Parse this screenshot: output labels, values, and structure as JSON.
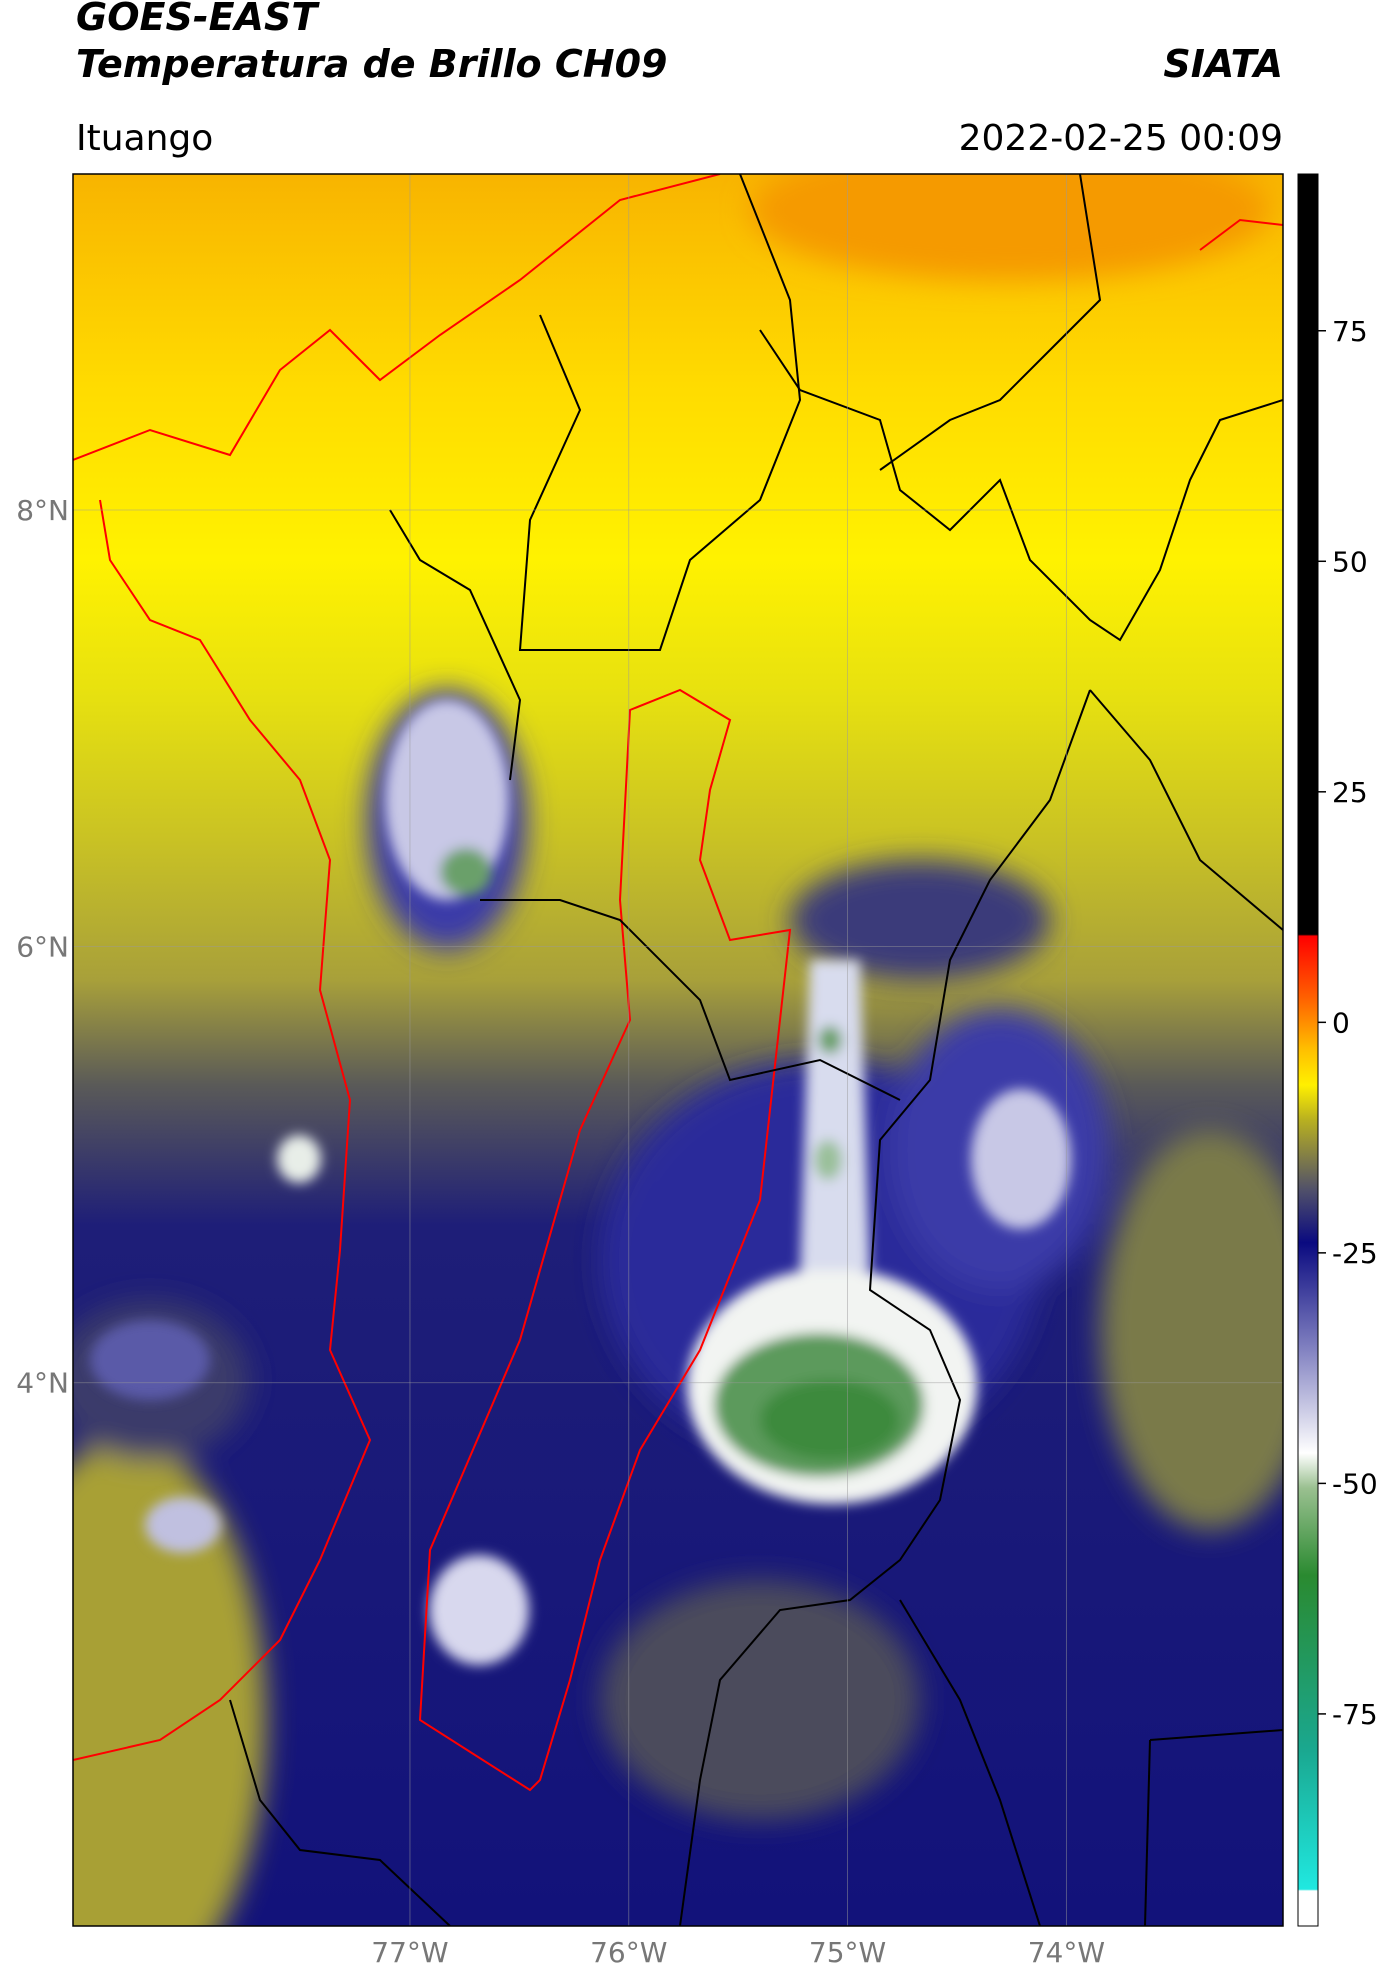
{
  "header": {
    "title": "GOES-EAST",
    "subtitle": "Temperatura de Brillo CH09",
    "source": "SIATA",
    "location": "Ituango",
    "datetime": "2022-02-25 00:09"
  },
  "map": {
    "xlim": [
      -78.54,
      -73.01
    ],
    "ylim": [
      1.51,
      9.54
    ],
    "xticks": [
      {
        "value": -77,
        "label": "77°W"
      },
      {
        "value": -76,
        "label": "76°W"
      },
      {
        "value": -75,
        "label": "75°W"
      },
      {
        "value": -74,
        "label": "74°W"
      }
    ],
    "yticks": [
      {
        "value": 8,
        "label": "8°N"
      },
      {
        "value": 6,
        "label": "6°N"
      },
      {
        "value": 4,
        "label": "4°N"
      }
    ],
    "grid": true
  },
  "colorbar": {
    "range": [
      -98,
      92
    ],
    "ticks": [
      -75,
      -50,
      -25,
      0,
      25,
      50,
      75
    ]
  }
}
